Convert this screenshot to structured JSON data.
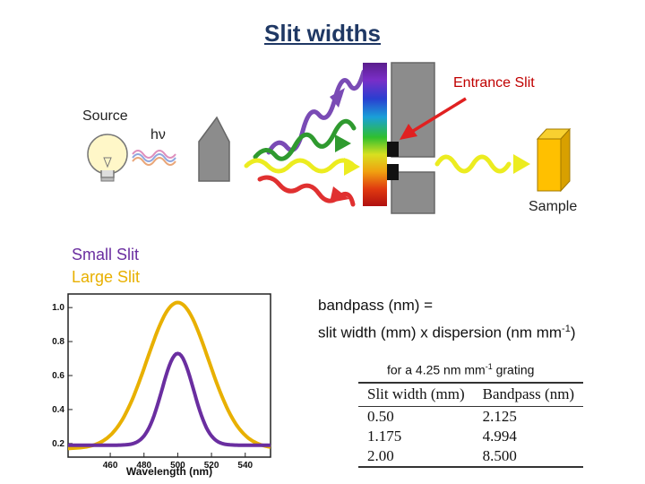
{
  "title": "Slit widths",
  "labels": {
    "source": "Source",
    "photon": "hν",
    "entrance_slit": "Entrance Slit",
    "sample": "Sample"
  },
  "legend": {
    "small_slit": "Small Slit",
    "large_slit": "Large Slit",
    "small_color": "#6a2ea0",
    "large_color": "#e8b000"
  },
  "formula": {
    "line1": "bandpass (nm) =",
    "line2_prefix": "slit width (mm) x dispersion (nm mm",
    "line2_sup": "-1",
    "line2_suffix": ")"
  },
  "grating": {
    "prefix": "for a 4.25 nm mm",
    "sup": "-1",
    "suffix": " grating"
  },
  "table": {
    "headers": [
      "Slit width (mm)",
      "Bandpass (nm)"
    ],
    "rows": [
      [
        "0.50",
        "2.125"
      ],
      [
        "1.175",
        "4.994"
      ],
      [
        "2.00",
        "8.500"
      ]
    ]
  },
  "chart_data": {
    "type": "line",
    "xlabel": "Wavelength (nm)",
    "ylabel": "",
    "xlim": [
      435,
      555
    ],
    "ylim": [
      0.12,
      1.08
    ],
    "x_ticks": [
      460,
      480,
      500,
      520,
      540
    ],
    "y_ticks": [
      "0.2",
      "0.4",
      "0.6",
      "0.8",
      "1.0"
    ],
    "series": [
      {
        "name": "Large Slit",
        "color": "#e8b000",
        "center": 500,
        "fwhm": 43,
        "peak": 1.03,
        "baseline": 0.17
      },
      {
        "name": "Small Slit",
        "color": "#6a2ea0",
        "center": 500,
        "fwhm": 22,
        "peak": 0.73,
        "baseline": 0.19
      }
    ]
  }
}
